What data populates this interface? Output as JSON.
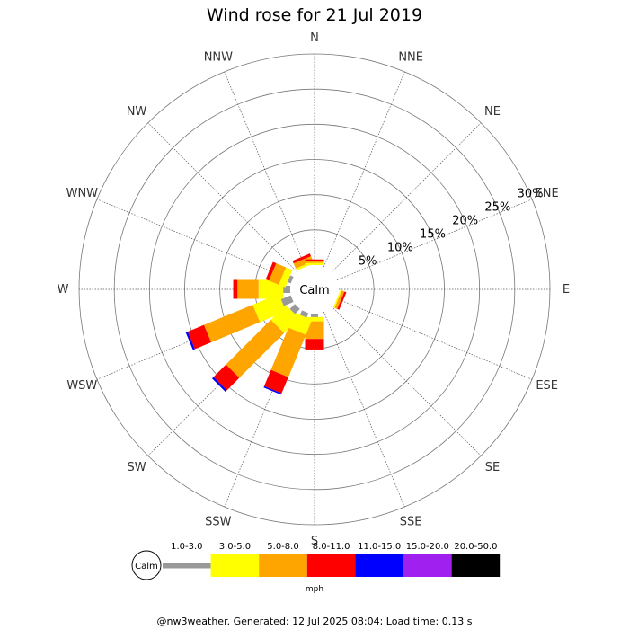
{
  "chart_data": {
    "type": "wind-rose",
    "title": "Wind rose for 21 Jul 2019",
    "calm_label": "Calm",
    "directions": [
      "N",
      "NNE",
      "NE",
      "ENE",
      "E",
      "ESE",
      "SE",
      "SSE",
      "S",
      "SSW",
      "SW",
      "WSW",
      "W",
      "WNW",
      "NW",
      "NNW"
    ],
    "radial_ticks": [
      {
        "value": 5,
        "label": "5%"
      },
      {
        "value": 10,
        "label": "10%"
      },
      {
        "value": 15,
        "label": "15%"
      },
      {
        "value": 20,
        "label": "20%"
      },
      {
        "value": 25,
        "label": "25%"
      },
      {
        "value": 30,
        "label": "30%"
      }
    ],
    "rmax": 30,
    "speed_bins": [
      {
        "label": "1.0-3.0",
        "color": "#999999"
      },
      {
        "label": "3.0-5.0",
        "color": "#ffff00"
      },
      {
        "label": "5.0-8.0",
        "color": "#ffa500"
      },
      {
        "label": "8.0-11.0",
        "color": "#ff0000"
      },
      {
        "label": "11.0-15.0",
        "color": "#0000ff"
      },
      {
        "label": "15.0-20.0",
        "color": "#a020f0"
      },
      {
        "label": "20.0-50.0",
        "color": "#000000"
      }
    ],
    "unit": "mph",
    "series": [
      {
        "direction": "NNW",
        "values": [
          0.0,
          0.3,
          0.8,
          0.4,
          0,
          0,
          0
        ]
      },
      {
        "direction": "N",
        "values": [
          0.0,
          0.3,
          0.3,
          0.2,
          0,
          0,
          0
        ]
      },
      {
        "direction": "ESE",
        "values": [
          0.0,
          0.2,
          0.4,
          0.3,
          0,
          0,
          0
        ]
      },
      {
        "direction": "S",
        "values": [
          0.5,
          0.6,
          2.5,
          1.5,
          0,
          0,
          0
        ]
      },
      {
        "direction": "SSW",
        "values": [
          0.7,
          2.3,
          6.5,
          2.5,
          0.2,
          0,
          0
        ]
      },
      {
        "direction": "SW",
        "values": [
          1.0,
          3.0,
          9.0,
          2.5,
          0.3,
          0,
          0
        ]
      },
      {
        "direction": "WSW",
        "values": [
          1.5,
          4.0,
          7.5,
          2.5,
          0.3,
          0,
          0
        ]
      },
      {
        "direction": "W",
        "values": [
          1.0,
          3.5,
          3.0,
          0.6,
          0,
          0,
          0
        ]
      },
      {
        "direction": "WNW",
        "values": [
          0.5,
          1.0,
          1.5,
          0.5,
          0,
          0,
          0
        ]
      }
    ]
  },
  "footer": "@nw3weather. Generated: 12 Jul 2025 08:04; Load time: 0.13 s"
}
